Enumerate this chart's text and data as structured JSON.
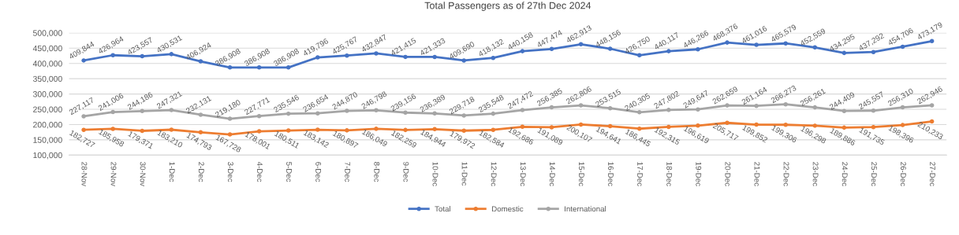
{
  "chart_data": {
    "type": "line",
    "title": "Total Passengers as of 27th Dec 2024",
    "categories": [
      "28-Nov",
      "29-Nov",
      "30-Nov",
      "1-Dec",
      "2-Dec",
      "3-Dec",
      "4-Dec",
      "5-Dec",
      "6-Dec",
      "7-Dec",
      "8-Dec",
      "9-Dec",
      "10-Dec",
      "11-Dec",
      "12-Dec",
      "13-Dec",
      "14-Dec",
      "15-Dec",
      "16-Dec",
      "17-Dec",
      "18-Dec",
      "19-Dec",
      "20-Dec",
      "21-Dec",
      "22-Dec",
      "23-Dec",
      "24-Dec",
      "25-Dec",
      "26-Dec",
      "27-Dec"
    ],
    "series": [
      {
        "name": "Total",
        "color": "#4472c4",
        "values": [
          409844,
          426964,
          423557,
          430531,
          406924,
          386908,
          386908,
          386908,
          419796,
          425767,
          432847,
          421415,
          421333,
          409690,
          418132,
          440158,
          447474,
          462913,
          448156,
          426750,
          440117,
          446266,
          468376,
          461016,
          465579,
          452559,
          434295,
          437292,
          454706,
          473179
        ],
        "value_labels": [
          "409,844",
          "426,964",
          "423,557",
          "430,531",
          "406,924",
          "386,908",
          "386,908",
          "386,908",
          "419,796",
          "425,767",
          "432,847",
          "421,415",
          "421,333",
          "409,690",
          "418,132",
          "440,158",
          "447,474",
          "462,913",
          "448,156",
          "426,750",
          "440,117",
          "446,266",
          "468,376",
          "461,016",
          "465,579",
          "452,559",
          "434,295",
          "437,292",
          "454,706",
          "473,179"
        ]
      },
      {
        "name": "Domestic",
        "color": "#ed7d31",
        "values": [
          182727,
          185958,
          179371,
          183210,
          174793,
          167728,
          178001,
          180511,
          183142,
          180897,
          186049,
          182259,
          184944,
          179972,
          182584,
          192686,
          191089,
          200107,
          194641,
          186445,
          192315,
          196619,
          205717,
          199852,
          199306,
          196298,
          189886,
          191735,
          198396,
          210233
        ],
        "value_labels": [
          "182,727",
          "185,958",
          "179,371",
          "183,210",
          "174,793",
          "167,728",
          "178,001",
          "180,511",
          "183,142",
          "180,897",
          "186,049",
          "182,259",
          "184,944",
          "179,972",
          "182,584",
          "192,686",
          "191,089",
          "200,107",
          "194,641",
          "186,445",
          "192,315",
          "196,619",
          "205,717",
          "199,852",
          "199,306",
          "196,298",
          "189,886",
          "191,735",
          "198,396",
          "210,233"
        ]
      },
      {
        "name": "International",
        "color": "#a5a5a5",
        "values": [
          227117,
          241006,
          244186,
          247321,
          232131,
          219180,
          227771,
          235546,
          236654,
          244870,
          246798,
          239156,
          236389,
          229718,
          235548,
          247472,
          256385,
          262806,
          253515,
          240305,
          247802,
          249647,
          262659,
          261164,
          266273,
          256261,
          244409,
          245557,
          256310,
          262946
        ],
        "value_labels": [
          "227,117",
          "241,006",
          "244,186",
          "247,321",
          "232,131",
          "219,180",
          "227,771",
          "235,546",
          "236,654",
          "244,870",
          "246,798",
          "239,156",
          "236,389",
          "229,718",
          "235,548",
          "247,472",
          "256,385",
          "262,806",
          "253,515",
          "240,305",
          "247,802",
          "249,647",
          "262,659",
          "261,164",
          "266,273",
          "256,261",
          "244,409",
          "245,557",
          "256,310",
          "262,946"
        ]
      }
    ],
    "ylim": [
      100000,
      500000
    ],
    "yticks": [
      {
        "value": 100000,
        "label": "100,000"
      },
      {
        "value": 150000,
        "label": "150,000"
      },
      {
        "value": 200000,
        "label": "200,000"
      },
      {
        "value": 250000,
        "label": "250,000"
      },
      {
        "value": 300000,
        "label": "300,000"
      },
      {
        "value": 350000,
        "label": "350,000"
      },
      {
        "value": 400000,
        "label": "400,000"
      },
      {
        "value": 450000,
        "label": "450,000"
      },
      {
        "value": 500000,
        "label": "500,000"
      }
    ],
    "grid": "y",
    "legend": "bottom",
    "marker": "circle",
    "line_style": "solid"
  }
}
